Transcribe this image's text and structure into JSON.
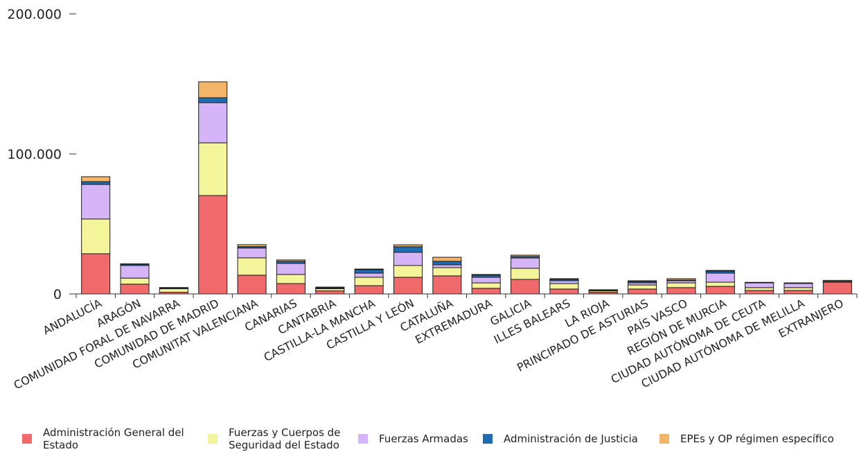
{
  "chart_data": {
    "type": "bar",
    "stacked": true,
    "categories": [
      "ANDALUCÍA",
      "ARAGÓN",
      "COMUNIDAD FORAL DE NAVARRA",
      "COMUNIDAD DE MADRID",
      "COMUNITAT VALENCIANA",
      "CANARIAS",
      "CANTABRIA",
      "CASTILLA-LA MANCHA",
      "CASTILLA Y LEÓN",
      "CATALUÑA",
      "EXTREMADURA",
      "GALICIA",
      "ILLES BALEARS",
      "LA RIOJA",
      "PRINCIPADO DE ASTURIAS",
      "PAÍS VASCO",
      "REGIÓN DE MURCIA",
      "CIUDAD AUTÓNOMA DE CEUTA",
      "CIUDAD AUTÓNOMA DE MELILLA",
      "EXTRANJERO"
    ],
    "series": [
      {
        "name": "Administración General del Estado",
        "color": "#f06a6b",
        "values": [
          28700,
          7000,
          1200,
          70300,
          13400,
          7400,
          2200,
          5900,
          11900,
          12900,
          4000,
          10400,
          3500,
          1200,
          3500,
          4500,
          5400,
          2500,
          2500,
          8400
        ]
      },
      {
        "name": "Fuerzas y Cuerpos de Seguridad del Estado",
        "color": "#f4f49b",
        "values": [
          24800,
          4300,
          2500,
          37600,
          12400,
          6500,
          1500,
          6000,
          8400,
          5900,
          3900,
          7900,
          3900,
          1000,
          2900,
          3400,
          3000,
          2000,
          2000,
          300
        ]
      },
      {
        "name": "Fuerzas Armadas",
        "color": "#d5b4f8",
        "values": [
          24700,
          9000,
          600,
          28700,
          7000,
          7900,
          600,
          3000,
          9400,
          2000,
          4000,
          7400,
          2000,
          400,
          1500,
          1500,
          6500,
          3400,
          3000,
          200
        ]
      },
      {
        "name": "Administración de Justicia",
        "color": "#1f6db0",
        "values": [
          2000,
          900,
          100,
          3500,
          1000,
          1500,
          300,
          2400,
          4000,
          2500,
          1500,
          1000,
          1000,
          200,
          1000,
          500,
          1400,
          200,
          200,
          100
        ]
      },
      {
        "name": "EPEs y OP régimen específico",
        "color": "#f3b568",
        "values": [
          3500,
          300,
          200,
          11400,
          1400,
          1000,
          300,
          500,
          1400,
          2900,
          500,
          1000,
          500,
          200,
          500,
          1000,
          500,
          200,
          200,
          700
        ]
      }
    ],
    "ylim": [
      0,
      200000
    ],
    "y_ticks": [
      {
        "value": 0,
        "label": "0"
      },
      {
        "value": 100000,
        "label": "100.000"
      },
      {
        "value": 200000,
        "label": "200.000"
      }
    ],
    "legend": "bottom",
    "grid": false
  }
}
